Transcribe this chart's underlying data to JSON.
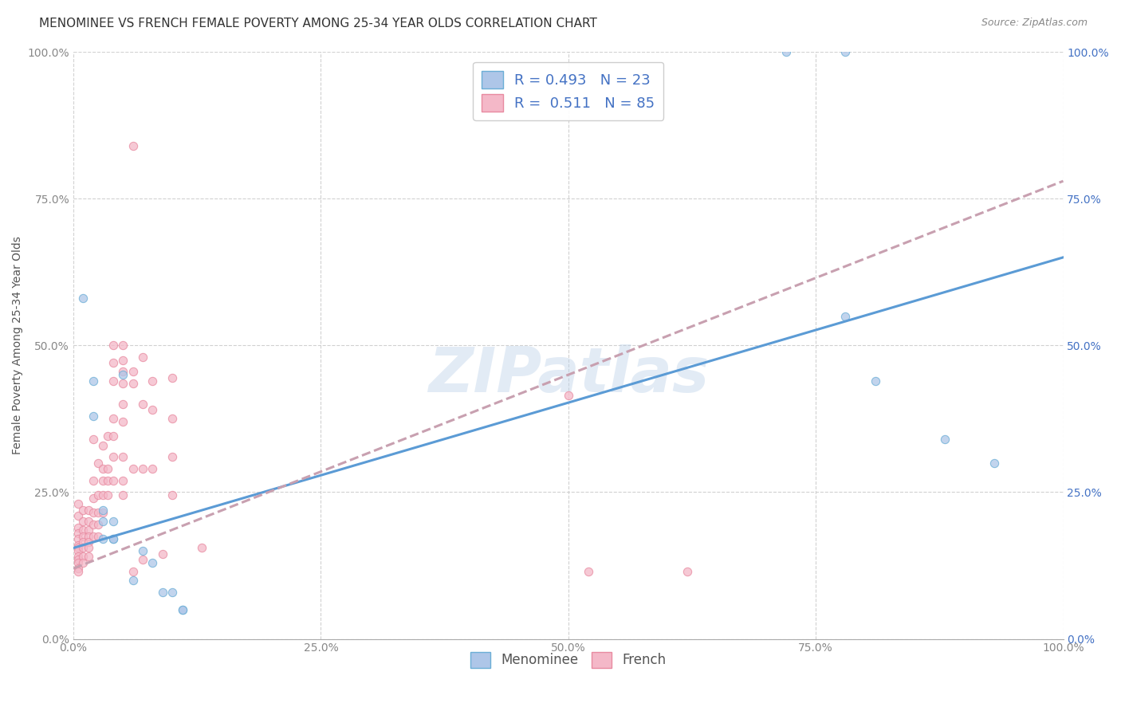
{
  "title": "MENOMINEE VS FRENCH FEMALE POVERTY AMONG 25-34 YEAR OLDS CORRELATION CHART",
  "source": "Source: ZipAtlas.com",
  "ylabel": "Female Poverty Among 25-34 Year Olds",
  "xlim": [
    0,
    1.0
  ],
  "ylim": [
    0,
    1.0
  ],
  "xticks": [
    0.0,
    0.25,
    0.5,
    0.75,
    1.0
  ],
  "yticks": [
    0.0,
    0.25,
    0.5,
    0.75,
    1.0
  ],
  "xticklabels": [
    "0.0%",
    "25.0%",
    "50.0%",
    "75.0%",
    "100.0%"
  ],
  "yticklabels": [
    "0.0%",
    "25.0%",
    "50.0%",
    "75.0%",
    "100.0%"
  ],
  "right_yticklabels": [
    "0.0%",
    "25.0%",
    "50.0%",
    "75.0%",
    "100.0%"
  ],
  "watermark": "ZIPatlas",
  "menominee_color": "#aec6e8",
  "french_color": "#f4b8c8",
  "menominee_edge_color": "#6baed6",
  "french_edge_color": "#e88aa0",
  "menominee_line_color": "#5b9bd5",
  "french_trendline_color": "#c8a0b0",
  "R_menominee": 0.493,
  "N_menominee": 23,
  "R_french": 0.511,
  "N_french": 85,
  "menominee_scatter": [
    [
      0.01,
      0.58
    ],
    [
      0.02,
      0.44
    ],
    [
      0.02,
      0.38
    ],
    [
      0.03,
      0.22
    ],
    [
      0.03,
      0.2
    ],
    [
      0.03,
      0.17
    ],
    [
      0.04,
      0.2
    ],
    [
      0.04,
      0.17
    ],
    [
      0.04,
      0.17
    ],
    [
      0.05,
      0.45
    ],
    [
      0.06,
      0.1
    ],
    [
      0.07,
      0.15
    ],
    [
      0.08,
      0.13
    ],
    [
      0.09,
      0.08
    ],
    [
      0.1,
      0.08
    ],
    [
      0.11,
      0.05
    ],
    [
      0.11,
      0.05
    ],
    [
      0.72,
      1.0
    ],
    [
      0.78,
      1.0
    ],
    [
      0.78,
      0.55
    ],
    [
      0.81,
      0.44
    ],
    [
      0.88,
      0.34
    ],
    [
      0.93,
      0.3
    ]
  ],
  "french_scatter": [
    [
      0.005,
      0.23
    ],
    [
      0.005,
      0.21
    ],
    [
      0.005,
      0.19
    ],
    [
      0.005,
      0.18
    ],
    [
      0.005,
      0.17
    ],
    [
      0.005,
      0.16
    ],
    [
      0.005,
      0.155
    ],
    [
      0.005,
      0.15
    ],
    [
      0.005,
      0.14
    ],
    [
      0.005,
      0.135
    ],
    [
      0.005,
      0.13
    ],
    [
      0.005,
      0.12
    ],
    [
      0.005,
      0.115
    ],
    [
      0.01,
      0.22
    ],
    [
      0.01,
      0.2
    ],
    [
      0.01,
      0.185
    ],
    [
      0.01,
      0.175
    ],
    [
      0.01,
      0.165
    ],
    [
      0.01,
      0.155
    ],
    [
      0.01,
      0.14
    ],
    [
      0.01,
      0.13
    ],
    [
      0.015,
      0.22
    ],
    [
      0.015,
      0.2
    ],
    [
      0.015,
      0.185
    ],
    [
      0.015,
      0.175
    ],
    [
      0.015,
      0.165
    ],
    [
      0.015,
      0.155
    ],
    [
      0.015,
      0.14
    ],
    [
      0.02,
      0.34
    ],
    [
      0.02,
      0.27
    ],
    [
      0.02,
      0.24
    ],
    [
      0.02,
      0.215
    ],
    [
      0.02,
      0.195
    ],
    [
      0.02,
      0.175
    ],
    [
      0.025,
      0.3
    ],
    [
      0.025,
      0.245
    ],
    [
      0.025,
      0.215
    ],
    [
      0.025,
      0.195
    ],
    [
      0.025,
      0.175
    ],
    [
      0.03,
      0.33
    ],
    [
      0.03,
      0.29
    ],
    [
      0.03,
      0.27
    ],
    [
      0.03,
      0.245
    ],
    [
      0.03,
      0.215
    ],
    [
      0.035,
      0.345
    ],
    [
      0.035,
      0.29
    ],
    [
      0.035,
      0.27
    ],
    [
      0.035,
      0.245
    ],
    [
      0.04,
      0.5
    ],
    [
      0.04,
      0.47
    ],
    [
      0.04,
      0.44
    ],
    [
      0.04,
      0.375
    ],
    [
      0.04,
      0.345
    ],
    [
      0.04,
      0.31
    ],
    [
      0.04,
      0.27
    ],
    [
      0.05,
      0.5
    ],
    [
      0.05,
      0.475
    ],
    [
      0.05,
      0.455
    ],
    [
      0.05,
      0.435
    ],
    [
      0.05,
      0.4
    ],
    [
      0.05,
      0.37
    ],
    [
      0.05,
      0.31
    ],
    [
      0.05,
      0.27
    ],
    [
      0.05,
      0.245
    ],
    [
      0.06,
      0.84
    ],
    [
      0.06,
      0.455
    ],
    [
      0.06,
      0.435
    ],
    [
      0.06,
      0.29
    ],
    [
      0.06,
      0.115
    ],
    [
      0.07,
      0.48
    ],
    [
      0.07,
      0.4
    ],
    [
      0.07,
      0.29
    ],
    [
      0.07,
      0.135
    ],
    [
      0.08,
      0.44
    ],
    [
      0.08,
      0.39
    ],
    [
      0.08,
      0.29
    ],
    [
      0.09,
      0.145
    ],
    [
      0.1,
      0.445
    ],
    [
      0.1,
      0.375
    ],
    [
      0.1,
      0.31
    ],
    [
      0.1,
      0.245
    ],
    [
      0.13,
      0.155
    ],
    [
      0.5,
      0.415
    ],
    [
      0.52,
      0.115
    ],
    [
      0.62,
      0.115
    ]
  ],
  "menominee_trendline": [
    0.0,
    1.0,
    0.155,
    0.65
  ],
  "french_trendline": [
    0.0,
    1.0,
    0.12,
    0.78
  ],
  "background_color": "#ffffff",
  "grid_color": "#cccccc",
  "legend_text_color": "#4472c4",
  "right_label_color": "#4472c4",
  "title_fontsize": 11,
  "axis_label_fontsize": 10,
  "tick_fontsize": 10,
  "scatter_size": 55,
  "scatter_alpha": 0.75,
  "line_width": 2.2
}
